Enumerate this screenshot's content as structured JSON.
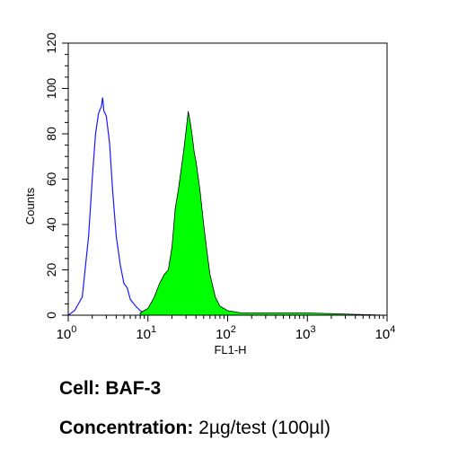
{
  "chart_data": {
    "type": "area",
    "title": "",
    "xlabel": "FL1-H",
    "ylabel": "Counts",
    "xscale": "log",
    "xlim": [
      1,
      10000
    ],
    "ylim": [
      0,
      120
    ],
    "x_ticks": [
      {
        "base": "10",
        "exp": "0",
        "value": 1
      },
      {
        "base": "10",
        "exp": "1",
        "value": 10
      },
      {
        "base": "10",
        "exp": "2",
        "value": 100
      },
      {
        "base": "10",
        "exp": "3",
        "value": 1000
      },
      {
        "base": "10",
        "exp": "4",
        "value": 10000
      }
    ],
    "y_ticks": [
      "0",
      "20",
      "40",
      "60",
      "80",
      "100",
      "120"
    ],
    "grid": false,
    "series": [
      {
        "style": "outline",
        "color": "#1a1aff",
        "x": [
          1.0,
          1.2,
          1.5,
          1.8,
          2.0,
          2.2,
          2.4,
          2.6,
          2.7,
          2.8,
          3.0,
          3.3,
          3.6,
          4.0,
          4.5,
          5.0,
          5.5,
          6.0,
          7.0,
          8.0,
          9.0,
          10.0
        ],
        "y": [
          0,
          2,
          8,
          35,
          60,
          80,
          89,
          92,
          96,
          90,
          88,
          76,
          55,
          35,
          22,
          14,
          12,
          7,
          4,
          2,
          1,
          0
        ]
      },
      {
        "style": "filled",
        "color": "#00ff00",
        "x": [
          8,
          10,
          12,
          14,
          16,
          18,
          20,
          22,
          24,
          26,
          28,
          30,
          32,
          34,
          36,
          38,
          40,
          45,
          50,
          55,
          60,
          70,
          80,
          100,
          150,
          300,
          1000,
          10000
        ],
        "y": [
          1,
          3,
          8,
          14,
          18,
          20,
          30,
          47,
          55,
          64,
          72,
          81,
          90,
          85,
          79,
          72,
          68,
          55,
          40,
          28,
          18,
          8,
          4,
          2,
          1,
          1,
          1,
          0
        ]
      }
    ]
  },
  "caption": {
    "cell_label": "Cell:",
    "cell_value": "BAF-3",
    "conc_label": "Concentration:",
    "conc_value": "2µg/test (100µl)"
  }
}
